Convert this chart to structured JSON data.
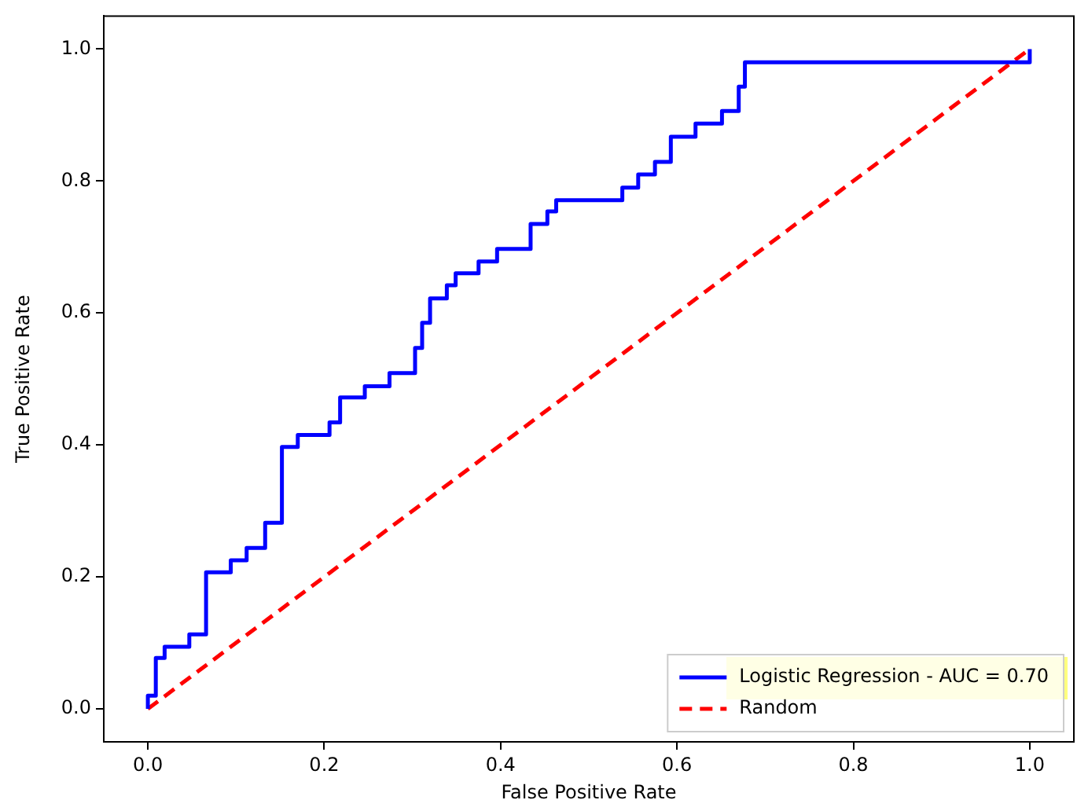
{
  "chart_data": {
    "type": "line",
    "xlabel": "False Positive Rate",
    "ylabel": "True Positive Rate",
    "xlim": [
      -0.05,
      1.05
    ],
    "ylim": [
      -0.05,
      1.05
    ],
    "xticks": [
      {
        "value": 0,
        "label": "0.0"
      },
      {
        "value": 0.2,
        "label": "0.2"
      },
      {
        "value": 0.4,
        "label": "0.4"
      },
      {
        "value": 0.6,
        "label": "0.6"
      },
      {
        "value": 0.8,
        "label": "0.8"
      },
      {
        "value": 1,
        "label": "1.0"
      }
    ],
    "yticks": [
      {
        "value": 0,
        "label": "0.0"
      },
      {
        "value": 0.2,
        "label": "0.2"
      },
      {
        "value": 0.4,
        "label": "0.4"
      },
      {
        "value": 0.6,
        "label": "0.6"
      },
      {
        "value": 0.8,
        "label": "0.8"
      },
      {
        "value": 1,
        "label": "1.0"
      }
    ],
    "grid": false,
    "legend": "bottom right",
    "marker": "none",
    "series": [
      {
        "name": "Logistic Regression - AUC = 0.70",
        "color": "#0000ff",
        "line_style": "solid",
        "x": [
          0,
          0,
          0.009,
          0.009,
          0.019,
          0.019,
          0.047,
          0.047,
          0.066,
          0.066,
          0.094,
          0.094,
          0.112,
          0.112,
          0.133,
          0.133,
          0.152,
          0.152,
          0.17,
          0.17,
          0.206,
          0.206,
          0.218,
          0.218,
          0.246,
          0.246,
          0.274,
          0.274,
          0.303,
          0.303,
          0.311,
          0.311,
          0.32,
          0.32,
          0.339,
          0.339,
          0.349,
          0.349,
          0.375,
          0.375,
          0.396,
          0.396,
          0.434,
          0.434,
          0.453,
          0.453,
          0.463,
          0.463,
          0.538,
          0.538,
          0.556,
          0.556,
          0.575,
          0.575,
          0.593,
          0.593,
          0.621,
          0.621,
          0.651,
          0.651,
          0.67,
          0.67,
          0.677,
          0.677,
          1,
          1
        ],
        "values": [
          0,
          0.02,
          0.02,
          0.077,
          0.077,
          0.094,
          0.094,
          0.113,
          0.113,
          0.207,
          0.207,
          0.225,
          0.225,
          0.244,
          0.244,
          0.282,
          0.282,
          0.397,
          0.397,
          0.415,
          0.415,
          0.434,
          0.434,
          0.472,
          0.472,
          0.489,
          0.489,
          0.509,
          0.509,
          0.547,
          0.547,
          0.585,
          0.585,
          0.622,
          0.622,
          0.642,
          0.642,
          0.66,
          0.66,
          0.678,
          0.678,
          0.697,
          0.697,
          0.735,
          0.735,
          0.754,
          0.754,
          0.771,
          0.771,
          0.79,
          0.79,
          0.81,
          0.81,
          0.829,
          0.829,
          0.867,
          0.867,
          0.887,
          0.887,
          0.906,
          0.906,
          0.943,
          0.943,
          0.98,
          0.98,
          1
        ]
      },
      {
        "name": "Random",
        "color": "#ff0000",
        "line_style": "dashed",
        "x": [
          0,
          1
        ],
        "values": [
          0,
          1
        ]
      }
    ]
  }
}
